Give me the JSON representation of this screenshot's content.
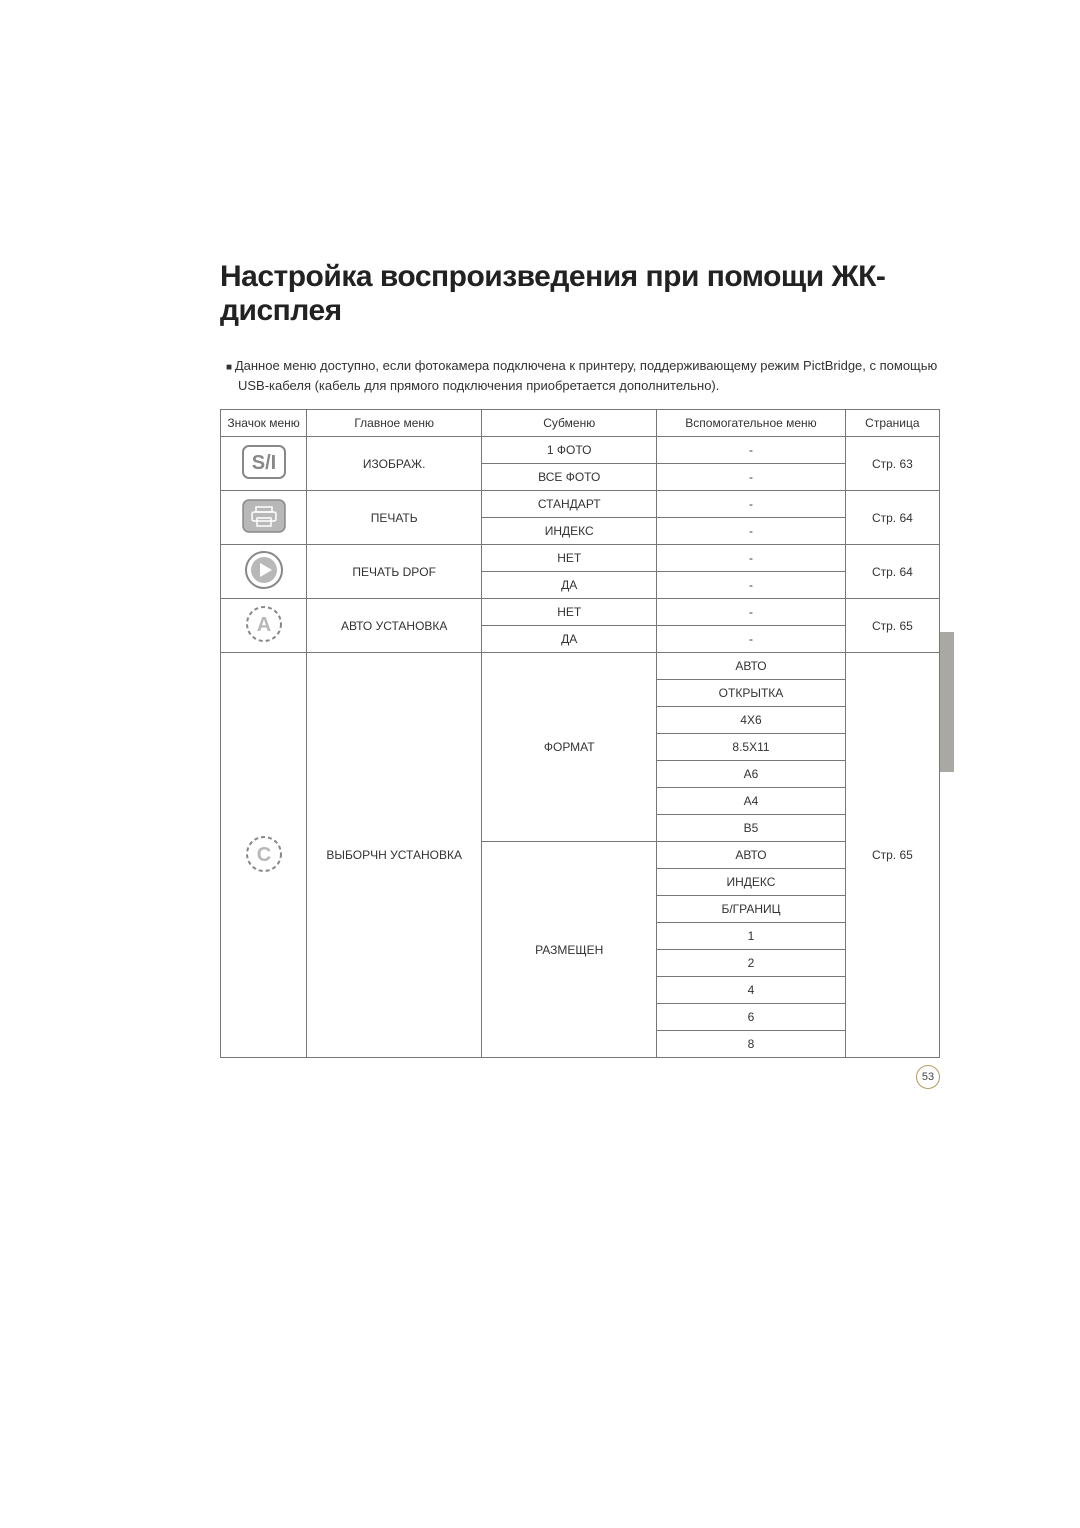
{
  "title": "Настройка воспроизведения при помощи ЖК-дисплея",
  "intro": "Данное меню доступно, если фотокамера подключена к принтеру, поддерживающему режим PictBridge, с помощью USB-кабеля (кабель для прямого подключения приобретается дополнительно).",
  "page_number": "53",
  "table": {
    "headers": {
      "icon": "Значок меню",
      "main": "Главное меню",
      "sub": "Субменю",
      "aux": "Вспомогательное меню",
      "page": "Страница"
    },
    "rows": [
      {
        "icon": "s-i",
        "main": "ИЗОБРАЖ.",
        "subs": [
          "1 ФОТО",
          "ВСЕ ФОТО"
        ],
        "aux": [
          "-",
          "-"
        ],
        "page": "Стр. 63"
      },
      {
        "icon": "printer",
        "main": "ПЕЧАТЬ",
        "subs": [
          "СТАНДАРТ",
          "ИНДЕКС"
        ],
        "aux": [
          "-",
          "-"
        ],
        "page": "Стр. 64"
      },
      {
        "icon": "play",
        "main": "ПЕЧАТЬ DPOF",
        "subs": [
          "НЕТ",
          "ДА"
        ],
        "aux": [
          "-",
          "-"
        ],
        "page": "Стр. 64"
      },
      {
        "icon": "auto",
        "main": "АВТО УСТАНОВКА",
        "subs": [
          "НЕТ",
          "ДА"
        ],
        "aux": [
          "-",
          "-"
        ],
        "page": "Стр. 65"
      }
    ],
    "custom_row": {
      "icon": "custom",
      "main": "ВЫБОРЧН УСТАНОВКА",
      "page": "Стр. 65",
      "groups": [
        {
          "sub": "ФОРМАТ",
          "aux": [
            "АВТО",
            "ОТКРЫТКА",
            "4X6",
            "8.5X11",
            "A6",
            "A4",
            "B5"
          ]
        },
        {
          "sub": "РАЗМЕЩЕН",
          "aux": [
            "АВТО",
            "ИНДЕКС",
            "Б/ГРАНИЦ",
            "1",
            "2",
            "4",
            "6",
            "8"
          ]
        }
      ]
    }
  },
  "icon_colors": {
    "stroke": "#888888",
    "fill_grey": "#b8b8b8",
    "text": "#888888"
  }
}
